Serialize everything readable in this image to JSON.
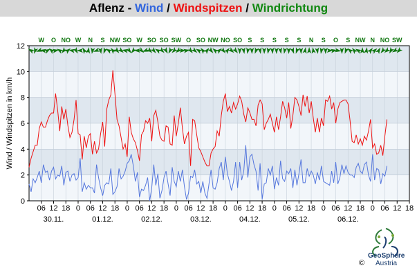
{
  "title": {
    "location": "Aflenz",
    "sep1": " - ",
    "wind": "Wind",
    "sep2": " / ",
    "gusts": "Windspitzen",
    "sep3": " / ",
    "direction": "Windrichtung"
  },
  "logo": {
    "name": "GeoSphere",
    "sub": "Austria",
    "copyright": "©"
  },
  "colors": {
    "wind": "#5577dd",
    "gusts": "#ee1111",
    "direction": "#117711",
    "band_dark": "#dfe7ef",
    "band_light": "#f2f6fa"
  },
  "chart_data": {
    "type": "line",
    "ylabel": "Wind / Windspitzen in km/h",
    "ylim": [
      0,
      12
    ],
    "yticks": [
      0,
      2,
      4,
      6,
      8,
      10,
      12
    ],
    "x_start_hour": 0,
    "x_end_hour": 186,
    "xticks": [
      {
        "hour": 6,
        "label": "06"
      },
      {
        "hour": 12,
        "label": "12"
      },
      {
        "hour": 18,
        "label": "18"
      },
      {
        "hour": 24,
        "label": "0"
      },
      {
        "hour": 30,
        "label": "06"
      },
      {
        "hour": 36,
        "label": "12"
      },
      {
        "hour": 42,
        "label": "18"
      },
      {
        "hour": 48,
        "label": "0"
      },
      {
        "hour": 54,
        "label": "06"
      },
      {
        "hour": 60,
        "label": "12"
      },
      {
        "hour": 66,
        "label": "18"
      },
      {
        "hour": 72,
        "label": "0"
      },
      {
        "hour": 78,
        "label": "06"
      },
      {
        "hour": 84,
        "label": "12"
      },
      {
        "hour": 90,
        "label": "18"
      },
      {
        "hour": 96,
        "label": "0"
      },
      {
        "hour": 102,
        "label": "06"
      },
      {
        "hour": 108,
        "label": "12"
      },
      {
        "hour": 114,
        "label": "18"
      },
      {
        "hour": 120,
        "label": "0"
      },
      {
        "hour": 126,
        "label": "06"
      },
      {
        "hour": 132,
        "label": "12"
      },
      {
        "hour": 138,
        "label": "18"
      },
      {
        "hour": 144,
        "label": "0"
      },
      {
        "hour": 150,
        "label": "06"
      },
      {
        "hour": 156,
        "label": "12"
      },
      {
        "hour": 162,
        "label": "18"
      },
      {
        "hour": 168,
        "label": "0"
      },
      {
        "hour": 174,
        "label": "06"
      },
      {
        "hour": 180,
        "label": "12"
      },
      {
        "hour": 186,
        "label": "18"
      }
    ],
    "day_labels": [
      {
        "hour": 12,
        "label": "30.11."
      },
      {
        "hour": 36,
        "label": "01.12."
      },
      {
        "hour": 60,
        "label": "02.12."
      },
      {
        "hour": 84,
        "label": "03.12."
      },
      {
        "hour": 108,
        "label": "04.12."
      },
      {
        "hour": 132,
        "label": "05.12."
      },
      {
        "hour": 156,
        "label": "06.12."
      }
    ],
    "direction_labels": [
      {
        "hour": 6,
        "label": "W"
      },
      {
        "hour": 12,
        "label": "O"
      },
      {
        "hour": 18,
        "label": "NO"
      },
      {
        "hour": 24,
        "label": "W"
      },
      {
        "hour": 30,
        "label": "N"
      },
      {
        "hour": 36,
        "label": "S"
      },
      {
        "hour": 42,
        "label": "NW"
      },
      {
        "hour": 48,
        "label": "SO"
      },
      {
        "hour": 54,
        "label": "W"
      },
      {
        "hour": 60,
        "label": "SO"
      },
      {
        "hour": 66,
        "label": "SO"
      },
      {
        "hour": 72,
        "label": "SW"
      },
      {
        "hour": 78,
        "label": "O"
      },
      {
        "hour": 84,
        "label": "SO"
      },
      {
        "hour": 90,
        "label": "NW"
      },
      {
        "hour": 96,
        "label": "NO"
      },
      {
        "hour": 102,
        "label": "SO"
      },
      {
        "hour": 108,
        "label": "S"
      },
      {
        "hour": 114,
        "label": "S"
      },
      {
        "hour": 120,
        "label": "S"
      },
      {
        "hour": 126,
        "label": "S"
      },
      {
        "hour": 132,
        "label": "S"
      },
      {
        "hour": 138,
        "label": "N"
      },
      {
        "hour": 144,
        "label": "S"
      },
      {
        "hour": 150,
        "label": "O"
      },
      {
        "hour": 156,
        "label": "S"
      },
      {
        "hour": 162,
        "label": "NW"
      },
      {
        "hour": 168,
        "label": "N"
      },
      {
        "hour": 174,
        "label": "NO"
      },
      {
        "hour": 180,
        "label": "SW"
      }
    ],
    "direction_arrows": [
      {
        "hour": 1,
        "deg": 300
      },
      {
        "hour": 3,
        "deg": 200
      },
      {
        "hour": 5,
        "deg": 250
      },
      {
        "hour": 7,
        "deg": 280
      },
      {
        "hour": 9,
        "deg": 60
      },
      {
        "hour": 11,
        "deg": 310
      },
      {
        "hour": 13,
        "deg": 80
      },
      {
        "hour": 15,
        "deg": 300
      },
      {
        "hour": 17,
        "deg": 220
      },
      {
        "hour": 19,
        "deg": 50
      },
      {
        "hour": 21,
        "deg": 280
      },
      {
        "hour": 23,
        "deg": 150
      },
      {
        "hour": 25,
        "deg": 270
      },
      {
        "hour": 27,
        "deg": 330
      },
      {
        "hour": 29,
        "deg": 10
      },
      {
        "hour": 31,
        "deg": 190
      },
      {
        "hour": 33,
        "deg": 250
      },
      {
        "hour": 35,
        "deg": 170
      },
      {
        "hour": 37,
        "deg": 200
      },
      {
        "hour": 39,
        "deg": 300
      },
      {
        "hour": 41,
        "deg": 320
      },
      {
        "hour": 43,
        "deg": 140
      },
      {
        "hour": 45,
        "deg": 130
      },
      {
        "hour": 47,
        "deg": 280
      },
      {
        "hour": 49,
        "deg": 140
      },
      {
        "hour": 51,
        "deg": 220
      },
      {
        "hour": 53,
        "deg": 270
      },
      {
        "hour": 55,
        "deg": 130
      },
      {
        "hour": 57,
        "deg": 250
      },
      {
        "hour": 59,
        "deg": 135
      },
      {
        "hour": 61,
        "deg": 140
      },
      {
        "hour": 63,
        "deg": 300
      },
      {
        "hour": 65,
        "deg": 135
      },
      {
        "hour": 67,
        "deg": 150
      },
      {
        "hour": 69,
        "deg": 210
      },
      {
        "hour": 71,
        "deg": 225
      },
      {
        "hour": 73,
        "deg": 230
      },
      {
        "hour": 75,
        "deg": 90
      },
      {
        "hour": 77,
        "deg": 80
      },
      {
        "hour": 79,
        "deg": 140
      },
      {
        "hour": 81,
        "deg": 130
      },
      {
        "hour": 83,
        "deg": 300
      },
      {
        "hour": 85,
        "deg": 320
      },
      {
        "hour": 87,
        "deg": 40
      },
      {
        "hour": 89,
        "deg": 140
      },
      {
        "hour": 91,
        "deg": 310
      },
      {
        "hour": 93,
        "deg": 50
      },
      {
        "hour": 95,
        "deg": 140
      },
      {
        "hour": 97,
        "deg": 40
      },
      {
        "hour": 99,
        "deg": 130
      },
      {
        "hour": 101,
        "deg": 140
      },
      {
        "hour": 103,
        "deg": 180
      },
      {
        "hour": 105,
        "deg": 170
      },
      {
        "hour": 107,
        "deg": 190
      },
      {
        "hour": 109,
        "deg": 180
      },
      {
        "hour": 111,
        "deg": 200
      },
      {
        "hour": 113,
        "deg": 170
      },
      {
        "hour": 115,
        "deg": 180
      },
      {
        "hour": 117,
        "deg": 190
      },
      {
        "hour": 119,
        "deg": 175
      },
      {
        "hour": 121,
        "deg": 180
      },
      {
        "hour": 123,
        "deg": 170
      },
      {
        "hour": 125,
        "deg": 190
      },
      {
        "hour": 127,
        "deg": 180
      },
      {
        "hour": 129,
        "deg": 160
      },
      {
        "hour": 131,
        "deg": 200
      },
      {
        "hour": 133,
        "deg": 180
      },
      {
        "hour": 135,
        "deg": 10
      },
      {
        "hour": 137,
        "deg": 0
      },
      {
        "hour": 139,
        "deg": 350
      },
      {
        "hour": 141,
        "deg": 170
      },
      {
        "hour": 143,
        "deg": 190
      },
      {
        "hour": 145,
        "deg": 180
      },
      {
        "hour": 147,
        "deg": 90
      },
      {
        "hour": 149,
        "deg": 80
      },
      {
        "hour": 151,
        "deg": 100
      },
      {
        "hour": 153,
        "deg": 180
      },
      {
        "hour": 155,
        "deg": 200
      },
      {
        "hour": 157,
        "deg": 310
      },
      {
        "hour": 159,
        "deg": 320
      },
      {
        "hour": 161,
        "deg": 300
      },
      {
        "hour": 163,
        "deg": 0
      },
      {
        "hour": 165,
        "deg": 10
      },
      {
        "hour": 167,
        "deg": 40
      },
      {
        "hour": 169,
        "deg": 50
      },
      {
        "hour": 171,
        "deg": 30
      },
      {
        "hour": 173,
        "deg": 220
      },
      {
        "hour": 175,
        "deg": 230
      },
      {
        "hour": 177,
        "deg": 210
      },
      {
        "hour": 179,
        "deg": 240
      },
      {
        "hour": 181,
        "deg": 225
      }
    ],
    "series": [
      {
        "name": "Windspitzen",
        "color_key": "gusts",
        "x_step_hours": 1,
        "values": [
          2.6,
          3.3,
          3.8,
          4.3,
          4.3,
          5.6,
          6.1,
          5.7,
          5.7,
          6.2,
          6.6,
          6.8,
          6.8,
          8.3,
          7.0,
          5.4,
          7.3,
          6.3,
          7.1,
          5.8,
          4.9,
          5.3,
          6.3,
          7.8,
          5.2,
          5.1,
          3.2,
          5.0,
          4.1,
          5.0,
          5.2,
          3.6,
          4.6,
          3.7,
          4.0,
          5.2,
          6.1,
          4.2,
          7.1,
          7.8,
          8.2,
          10.1,
          8.3,
          6.3,
          5.8,
          4.9,
          4.0,
          4.4,
          3.4,
          6.5,
          5.3,
          4.8,
          4.5,
          3.9,
          3.1,
          5.1,
          5.4,
          6.2,
          6.0,
          6.4,
          4.6,
          6.6,
          7.0,
          6.1,
          5.0,
          4.7,
          4.6,
          5.8,
          5.7,
          4.4,
          4.3,
          6.6,
          5.0,
          6.0,
          7.2,
          5.6,
          4.4,
          5.0,
          5.3,
          2.7,
          6.3,
          6.2,
          5.1,
          4.1,
          3.8,
          3.4,
          3.0,
          2.7,
          2.7,
          3.7,
          4.0,
          4.2,
          5.4,
          5.0,
          6.6,
          7.7,
          8.3,
          6.9,
          7.3,
          6.8,
          7.6,
          7.1,
          7.5,
          8.1,
          7.7,
          6.7,
          6.1,
          7.2,
          6.8,
          6.3,
          6.3,
          5.8,
          7.4,
          7.8,
          7.5,
          5.5,
          6.0,
          6.3,
          6.7,
          6.0,
          5.3,
          6.5,
          5.5,
          6.5,
          7.7,
          7.2,
          6.4,
          7.6,
          5.6,
          6.6,
          8.0,
          7.8,
          7.3,
          6.6,
          8.2,
          7.3,
          8.1,
          6.8,
          7.7,
          6.4,
          5.3,
          6.4,
          5.3,
          6.4,
          5.8,
          7.8,
          7.7,
          8.1,
          7.1,
          7.6,
          6.0,
          7.1,
          7.6,
          7.7,
          7.8,
          7.8,
          7.5,
          6.2,
          4.6,
          4.5,
          5.1,
          4.4,
          4.8,
          4.3,
          5.0,
          4.7,
          5.4,
          6.3,
          4.1,
          4.4,
          3.6,
          3.7,
          4.3,
          3.5,
          5.0,
          6.3
        ]
      },
      {
        "name": "Wind",
        "color_key": "wind",
        "x_step_hours": 1,
        "values": [
          1.3,
          0.7,
          1.7,
          1.4,
          1.8,
          2.3,
          1.4,
          2.8,
          2.2,
          2.3,
          1.6,
          2.3,
          2.6,
          1.7,
          2.0,
          1.9,
          2.7,
          1.2,
          2.2,
          2.3,
          1.5,
          2.0,
          2.1,
          1.6,
          1.8,
          3.3,
          0.7,
          1.4,
          0.9,
          1.2,
          1.0,
          1.0,
          0.6,
          2.8,
          1.8,
          1.0,
          0.4,
          1.2,
          1.4,
          1.3,
          2.5,
          0.5,
          0.7,
          1.1,
          2.5,
          1.7,
          1.9,
          2.3,
          2.9,
          3.1,
          3.6,
          2.7,
          1.5,
          2.2,
          0.3,
          0.9,
          0.8,
          1.2,
          1.8,
          0.0,
          1.0,
          2.8,
          1.2,
          2.1,
          0.2,
          0.8,
          1.8,
          2.3,
          1.3,
          0.4,
          2.6,
          1.5,
          1.1,
          2.3,
          1.5,
          2.4,
          1.1,
          0.1,
          0.6,
          1.9,
          1.8,
          2.4,
          1.3,
          1.5,
          0.6,
          1.5,
          0.6,
          0.2,
          1.3,
          2.4,
          1.0,
          0.9,
          1.4,
          2.5,
          3.0,
          1.6,
          3.4,
          2.1,
          1.5,
          0.8,
          1.5,
          3.0,
          1.0,
          3.0,
          1.6,
          2.3,
          4.3,
          1.8,
          3.4,
          3.6,
          2.8,
          2.3,
          0.8,
          2.9,
          0.1,
          1.3,
          1.4,
          2.5,
          2.0,
          2.7,
          0.9,
          1.8,
          1.2,
          3.1,
          1.7,
          1.5,
          2.3,
          2.1,
          2.5,
          1.0,
          2.4,
          1.2,
          2.1,
          3.2,
          1.4,
          1.4,
          2.5,
          1.9,
          2.3,
          2.0,
          1.3,
          2.2,
          1.6,
          2.7,
          1.5,
          1.4,
          1.3,
          1.2,
          2.3,
          1.4,
          3.0,
          1.3,
          1.8,
          2.8,
          2.1,
          2.7,
          2.2,
          2.0,
          2.0,
          1.8,
          2.6,
          2.9,
          2.3,
          2.1,
          2.8,
          3.0,
          2.0,
          1.5,
          3.6,
          1.6,
          2.5,
          2.4,
          1.3,
          2.1,
          1.9,
          2.7
        ]
      }
    ]
  }
}
